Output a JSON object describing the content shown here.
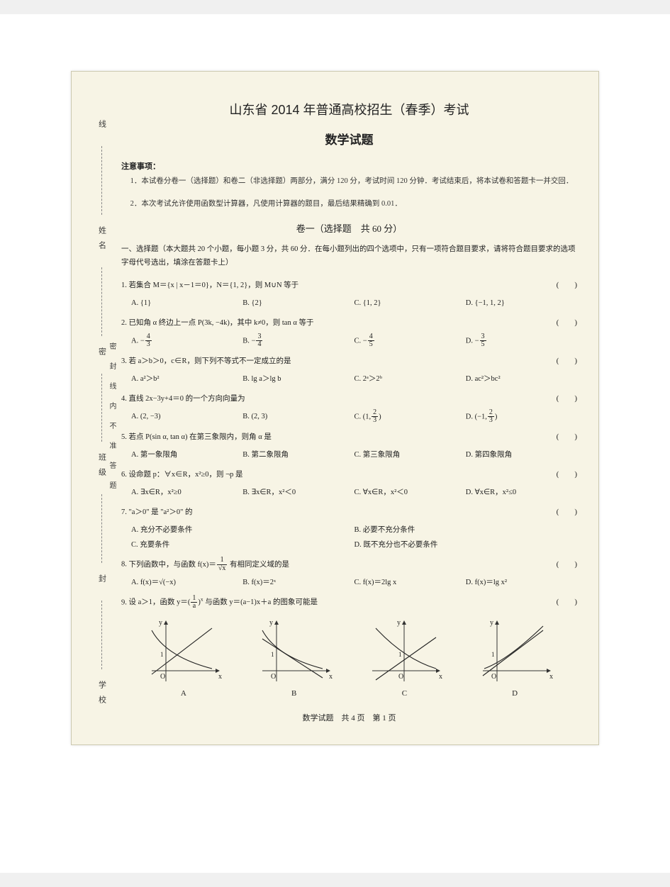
{
  "colors": {
    "page_bg": "#ffffff",
    "paper_bg": "#f7f4e5",
    "text": "#222222",
    "border": "#ccc8b0",
    "axis": "#333333"
  },
  "fonts": {
    "body_size_pt": 10.5,
    "title_size_pt": 18,
    "subtitle_size_pt": 17
  },
  "sidebar": {
    "fields": [
      "学校",
      "封",
      "班级",
      "密",
      "姓名",
      "线"
    ],
    "inner": "密封线内不准答题"
  },
  "header": {
    "title": "山东省 2014 年普通高校招生（春季）考试",
    "subject": "数学试题",
    "notice_label": "注意事项：",
    "notices": [
      "1．本试卷分卷一（选择题）和卷二（非选择题）两部分，满分 120 分，考试时间 120 分钟．考试结束后，将本试卷和答题卡一并交回．",
      "2．本次考试允许使用函数型计算器，凡使用计算器的题目，最后结果精确到 0.01．"
    ]
  },
  "section": {
    "title": "卷一（选择题　共 60 分）",
    "desc": "一、选择题（本大题共 20 个小题，每小题 3 分，共 60 分．在每小题列出的四个选项中，只有一项符合题目要求，请将符合题目要求的选项字母代号选出，填涂在答题卡上）"
  },
  "questions": [
    {
      "n": "1",
      "text": "若集合 M＝{x | x－1＝0}，N＝{1, 2}，则 M∪N 等于",
      "options": [
        "A. {1}",
        "B. {2}",
        "C. {1, 2}",
        "D. {−1, 1, 2}"
      ]
    },
    {
      "n": "2",
      "text": "已知角 α 终边上一点 P(3k, −4k)，其中 k≠0，则 tan α 等于",
      "options_frac": [
        {
          "label": "A.",
          "neg": "−",
          "num": "4",
          "den": "3"
        },
        {
          "label": "B.",
          "neg": "−",
          "num": "3",
          "den": "4"
        },
        {
          "label": "C.",
          "neg": "−",
          "num": "4",
          "den": "5"
        },
        {
          "label": "D.",
          "neg": "−",
          "num": "3",
          "den": "5"
        }
      ]
    },
    {
      "n": "3",
      "text": "若 a＞b＞0，c∈R，则下列不等式不一定成立的是",
      "options_html": [
        "A. a²＞b²",
        "B. lg a＞lg b",
        "C. 2ᵃ＞2ᵇ",
        "D. ac²＞bc²"
      ]
    },
    {
      "n": "4",
      "text": "直线 2x−3y+4＝0 的一个方向向量为",
      "options_mixed": [
        "A. (2, −3)",
        "B. (2, 3)",
        {
          "label": "C.",
          "paren_l": "(1,",
          "num": "2",
          "den": "3",
          "paren_r": ")"
        },
        {
          "label": "D.",
          "paren_l": "(−1,",
          "num": "2",
          "den": "3",
          "paren_r": ")"
        }
      ]
    },
    {
      "n": "5",
      "text": "若点 P(sin α, tan α) 在第三象限内，则角 α 是",
      "options": [
        "A. 第一象限角",
        "B. 第二象限角",
        "C. 第三象限角",
        "D. 第四象限角"
      ]
    },
    {
      "n": "6",
      "text": "设命题 p：∀x∈R，x²≥0，则 ¬p 是",
      "options": [
        "A. ∃x∈R，x²≥0",
        "B. ∃x∈R，x²＜0",
        "C. ∀x∈R，x²＜0",
        "D. ∀x∈R，x²≤0"
      ]
    },
    {
      "n": "7",
      "text": "\"a＞0\" 是 \"a²＞0\" 的",
      "options_two": [
        "A. 充分不必要条件",
        "B. 必要不充分条件",
        "C. 充要条件",
        "D. 既不充分也不必要条件"
      ]
    },
    {
      "n": "8",
      "text_html": "下列函数中，与函数 f(x)＝<span class='frac'><span class='num'>1</span><span class='den'>√x</span></span> 有相同定义域的是",
      "options_html": [
        "A. f(x)＝√(−x)",
        "B. f(x)＝2ˣ",
        "C. f(x)＝2lg x",
        "D. f(x)＝lg x²"
      ]
    },
    {
      "n": "9",
      "text_html": "设 a＞1，函数 y＝(<span class='frac'><span class='num'>1</span><span class='den'>a</span></span>)<sup>x</sup> 与函数 y＝(a−1)x＋a 的图象可能是"
    }
  ],
  "charts": {
    "type": "function-sketches",
    "width": 110,
    "height": 95,
    "axis_color": "#333333",
    "curve_color": "#222222",
    "line_width": 1.1,
    "tick_label": "1",
    "labels": [
      "A",
      "B",
      "C",
      "D"
    ],
    "items": [
      {
        "decay": "down-right",
        "line": "up-right",
        "intercept_pos": true
      },
      {
        "decay": "down-right",
        "line": "down-right",
        "intercept_pos": true
      },
      {
        "decay": "down-right",
        "line": "up-right",
        "intercept_pos": false
      },
      {
        "decay": "up-right",
        "line": "up-right",
        "intercept_pos": true
      }
    ]
  },
  "footer": "数学试题　共 4 页　第 1 页"
}
